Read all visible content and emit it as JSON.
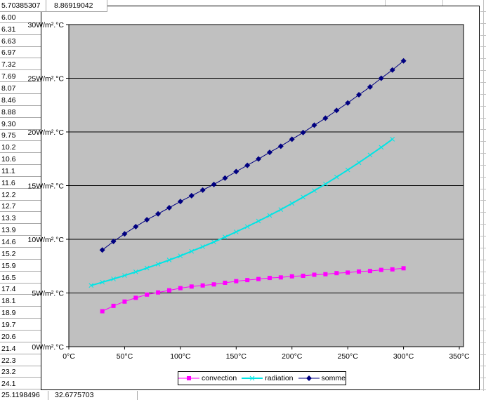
{
  "sheet": {
    "top_row": {
      "col_a": "5.70385307",
      "col_b": "8.86919042"
    },
    "bottom_row": {
      "col_a": "25.1198496",
      "col_b": "32.6775703"
    },
    "col_a_rows": [
      "6.00",
      "6.31",
      "6.63",
      "6.97",
      "7.32",
      "7.69",
      "8.07",
      "8.46",
      "8.88",
      "9.30",
      "9.75",
      "10.2",
      "10.6",
      "11.1",
      "11.6",
      "12.2",
      "12.7",
      "13.3",
      "13.9",
      "14.6",
      "15.2",
      "15.9",
      "16.5",
      "17.4",
      "18.1",
      "18.9",
      "19.7",
      "20.6",
      "21.4",
      "22.3",
      "23.2",
      "24.1"
    ]
  },
  "chart_data": {
    "type": "line",
    "plot_background": "#c0c0c0",
    "grid": true,
    "legend_position": "bottom",
    "x_axis": {
      "min": 0,
      "max": 350,
      "step": 50,
      "unit": "°C",
      "tick_labels": [
        "0°C",
        "50°C",
        "100°C",
        "150°C",
        "200°C",
        "250°C",
        "300°C",
        "350°C"
      ]
    },
    "y_axis": {
      "min": 0,
      "max": 30,
      "step": 5,
      "unit": "W/m².°C",
      "tick_labels": [
        "0W/m².°C",
        "5W/m².°C",
        "10W/m².°C",
        "15W/m².°C",
        "20W/m².°C",
        "25W/m².°C",
        "30W/m².°C"
      ]
    },
    "series": [
      {
        "name": "convection",
        "color": "#ff00ff",
        "marker": "square",
        "line_width": 1,
        "x": [
          30,
          40,
          50,
          60,
          70,
          80,
          90,
          100,
          110,
          120,
          130,
          140,
          150,
          160,
          170,
          180,
          190,
          200,
          210,
          220,
          230,
          240,
          250,
          260,
          270,
          280,
          290,
          300
        ],
        "values": [
          3.3,
          3.8,
          4.2,
          4.55,
          4.85,
          5.05,
          5.25,
          5.45,
          5.6,
          5.7,
          5.8,
          5.95,
          6.1,
          6.2,
          6.3,
          6.4,
          6.45,
          6.55,
          6.6,
          6.7,
          6.75,
          6.85,
          6.9,
          7.0,
          7.05,
          7.15,
          7.2,
          7.3
        ]
      },
      {
        "name": "radiation",
        "color": "#00e5e5",
        "marker": "x",
        "line_width": 2,
        "x": [
          20,
          30,
          40,
          50,
          60,
          70,
          80,
          90,
          100,
          110,
          120,
          130,
          140,
          150,
          160,
          170,
          180,
          190,
          200,
          210,
          220,
          230,
          240,
          250,
          260,
          270,
          280,
          290
        ],
        "values": [
          5.7,
          6.0,
          6.31,
          6.63,
          6.97,
          7.32,
          7.69,
          8.07,
          8.46,
          8.88,
          9.31,
          9.75,
          10.21,
          10.69,
          11.18,
          11.7,
          12.22,
          12.77,
          13.34,
          13.93,
          14.53,
          15.15,
          15.8,
          16.46,
          17.14,
          17.85,
          18.57,
          19.32
        ]
      },
      {
        "name": "somme",
        "color": "#000080",
        "marker": "diamond",
        "line_width": 1,
        "x": [
          30,
          40,
          50,
          60,
          70,
          80,
          90,
          100,
          110,
          120,
          130,
          140,
          150,
          160,
          170,
          180,
          190,
          200,
          210,
          220,
          230,
          240,
          250,
          260,
          270,
          280,
          290,
          300
        ],
        "values": [
          9.0,
          9.8,
          10.51,
          11.18,
          11.82,
          12.37,
          12.94,
          13.52,
          14.06,
          14.58,
          15.11,
          15.7,
          16.31,
          16.89,
          17.48,
          18.1,
          18.67,
          19.32,
          19.94,
          20.63,
          21.28,
          22.0,
          22.7,
          23.46,
          24.19,
          25.0,
          25.77,
          26.62
        ]
      }
    ]
  }
}
